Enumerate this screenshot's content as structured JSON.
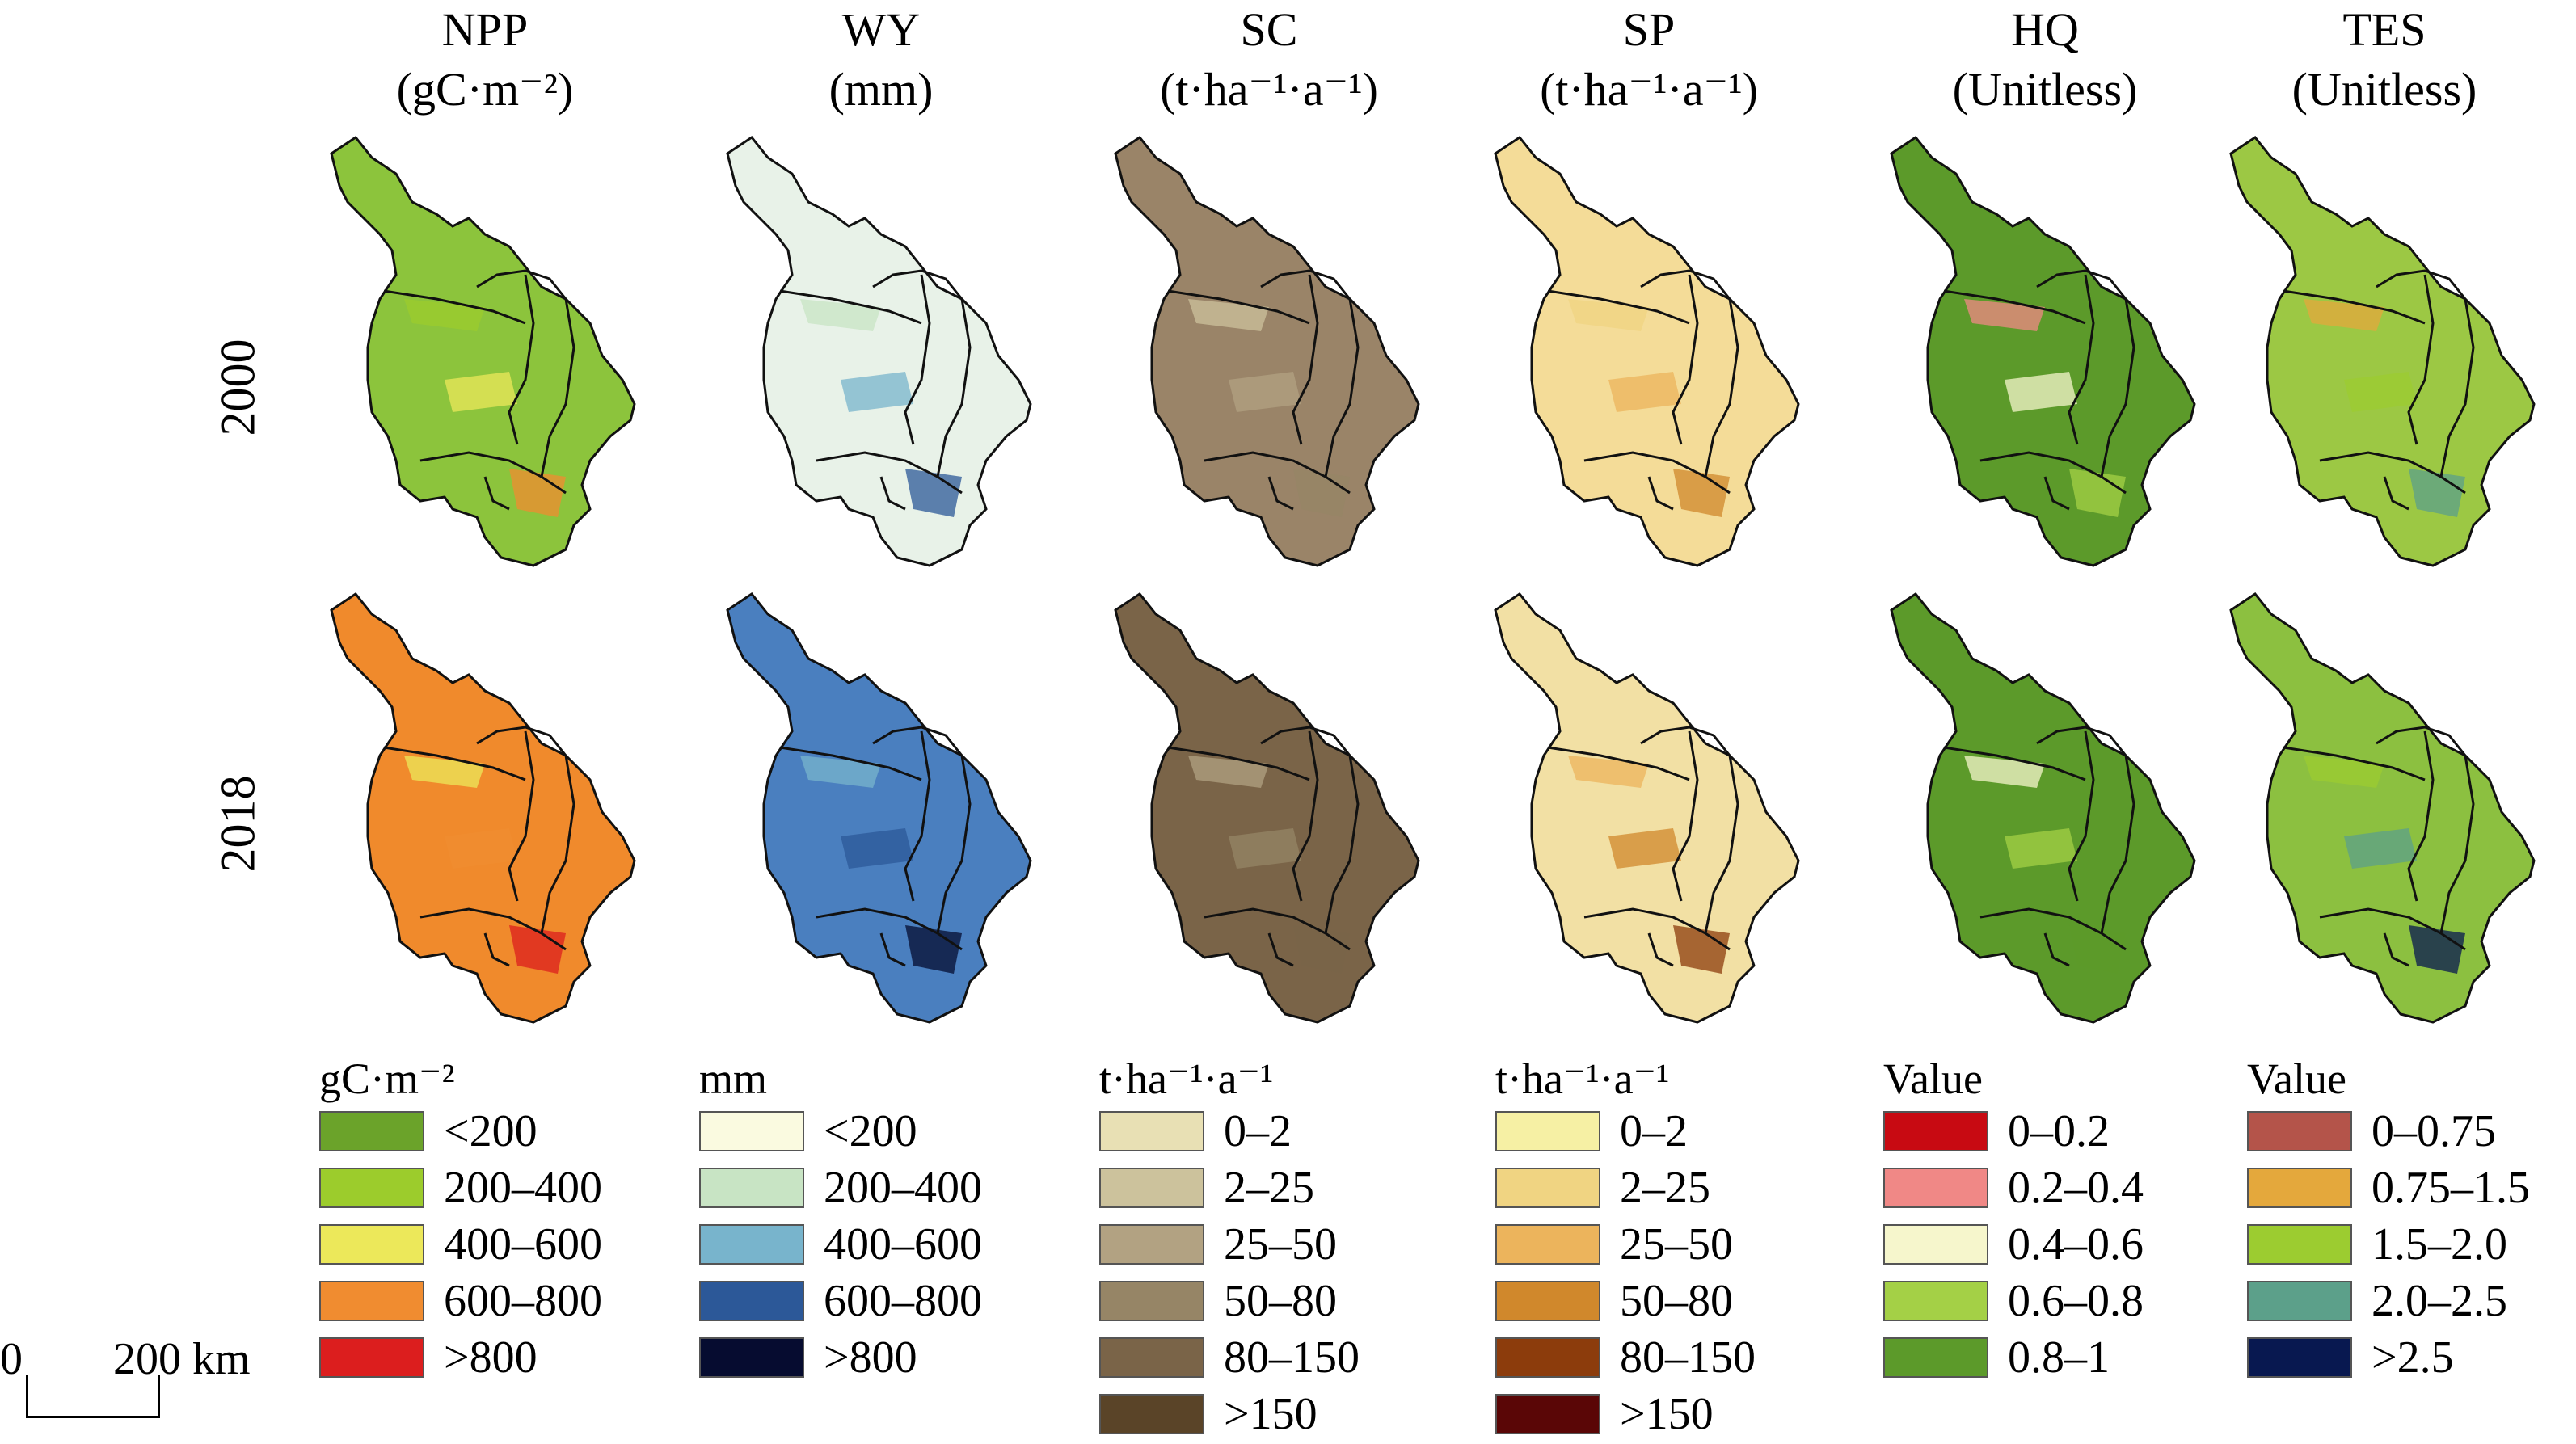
{
  "columns": [
    {
      "title": "NPP",
      "unit": "(gC·m⁻²)"
    },
    {
      "title": "WY",
      "unit": "(mm)"
    },
    {
      "title": "SC",
      "unit": "(t·ha⁻¹·a⁻¹)"
    },
    {
      "title": "SP",
      "unit": "(t·ha⁻¹·a⁻¹)"
    },
    {
      "title": "HQ",
      "unit": "(Unitless)"
    },
    {
      "title": "TES",
      "unit": "(Unitless)"
    }
  ],
  "rows": [
    "2000",
    "2018"
  ],
  "map_fill_colors": [
    [
      "#8cc43c",
      "#f08a2c"
    ],
    [
      "#e8f2e8",
      "#4a7fbf"
    ],
    [
      "#9a8468",
      "#7a6448"
    ],
    [
      "#f4dc98",
      "#f2e0a4"
    ],
    [
      "#5c9a2a",
      "#5c9a2a"
    ],
    [
      "#9cc844",
      "#8cc040"
    ]
  ],
  "legends": [
    {
      "title": "gC·m⁻²",
      "items": [
        {
          "label": "<200",
          "color": "#6ba32a"
        },
        {
          "label": "200–400",
          "color": "#9ccc2c"
        },
        {
          "label": "400–600",
          "color": "#ece85a"
        },
        {
          "label": "600–800",
          "color": "#f08c30"
        },
        {
          "label": ">800",
          "color": "#dc1e1e"
        }
      ]
    },
    {
      "title": "mm",
      "items": [
        {
          "label": "<200",
          "color": "#fafae0"
        },
        {
          "label": "200–400",
          "color": "#c8e4c4"
        },
        {
          "label": "400–600",
          "color": "#78b4cc"
        },
        {
          "label": "600–800",
          "color": "#2c5898"
        },
        {
          "label": ">800",
          "color": "#060c30"
        }
      ]
    },
    {
      "title": "t·ha⁻¹·a⁻¹",
      "items": [
        {
          "label": "0–2",
          "color": "#e8e0b4"
        },
        {
          "label": "2–25",
          "color": "#ccc29c"
        },
        {
          "label": "25–50",
          "color": "#b2a282"
        },
        {
          "label": "50–80",
          "color": "#968566"
        },
        {
          "label": "80–150",
          "color": "#7a6448"
        },
        {
          "label": ">150",
          "color": "#5a4428"
        }
      ]
    },
    {
      "title": "t·ha⁻¹·a⁻¹",
      "items": [
        {
          "label": "0–2",
          "color": "#f6f0a4"
        },
        {
          "label": "2–25",
          "color": "#f0d482"
        },
        {
          "label": "25–50",
          "color": "#ecb45c"
        },
        {
          "label": "50–80",
          "color": "#d0882c"
        },
        {
          "label": "80–150",
          "color": "#8c3c0c"
        },
        {
          "label": ">150",
          "color": "#5a0606"
        }
      ]
    },
    {
      "title": "Value",
      "items": [
        {
          "label": "0–0.2",
          "color": "#c80a12"
        },
        {
          "label": "0.2–0.4",
          "color": "#f08886"
        },
        {
          "label": "0.4–0.6",
          "color": "#f6f6cc"
        },
        {
          "label": "0.6–0.8",
          "color": "#a4d046"
        },
        {
          "label": "0.8–1",
          "color": "#5c9a2a"
        }
      ]
    },
    {
      "title": "Value",
      "items": [
        {
          "label": "0–0.75",
          "color": "#b4544a"
        },
        {
          "label": "0.75–1.5",
          "color": "#e4a83c"
        },
        {
          "label": "1.5–2.0",
          "color": "#9ccc30"
        },
        {
          "label": "2.0–2.5",
          "color": "#5ca08a"
        },
        {
          "label": ">2.5",
          "color": "#081850"
        }
      ]
    }
  ],
  "scale": {
    "start": "0",
    "end": "200 km"
  }
}
